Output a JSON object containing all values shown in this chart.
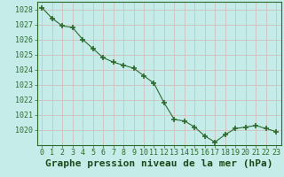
{
  "x": [
    0,
    1,
    2,
    3,
    4,
    5,
    6,
    7,
    8,
    9,
    10,
    11,
    12,
    13,
    14,
    15,
    16,
    17,
    18,
    19,
    20,
    21,
    22,
    23
  ],
  "y": [
    1028.1,
    1027.4,
    1026.9,
    1026.8,
    1026.0,
    1025.4,
    1024.8,
    1024.5,
    1024.3,
    1024.1,
    1023.6,
    1023.1,
    1021.8,
    1020.7,
    1020.6,
    1020.2,
    1019.6,
    1019.2,
    1019.7,
    1020.1,
    1020.2,
    1020.3,
    1020.1,
    1019.9
  ],
  "line_color": "#2d6a2d",
  "marker_color": "#2d6a2d",
  "bg_color": "#c5ece8",
  "grid_color": "#d4b8b8",
  "title": "Graphe pression niveau de la mer (hPa)",
  "ylim_min": 1019.0,
  "ylim_max": 1028.5,
  "yticks": [
    1020,
    1021,
    1022,
    1023,
    1024,
    1025,
    1026,
    1027,
    1028
  ],
  "xticks": [
    0,
    1,
    2,
    3,
    4,
    5,
    6,
    7,
    8,
    9,
    10,
    11,
    12,
    13,
    14,
    15,
    16,
    17,
    18,
    19,
    20,
    21,
    22,
    23
  ],
  "title_fontsize": 8,
  "tick_fontsize": 6,
  "title_color": "#1a4a1a",
  "tick_color": "#2d6a2d"
}
